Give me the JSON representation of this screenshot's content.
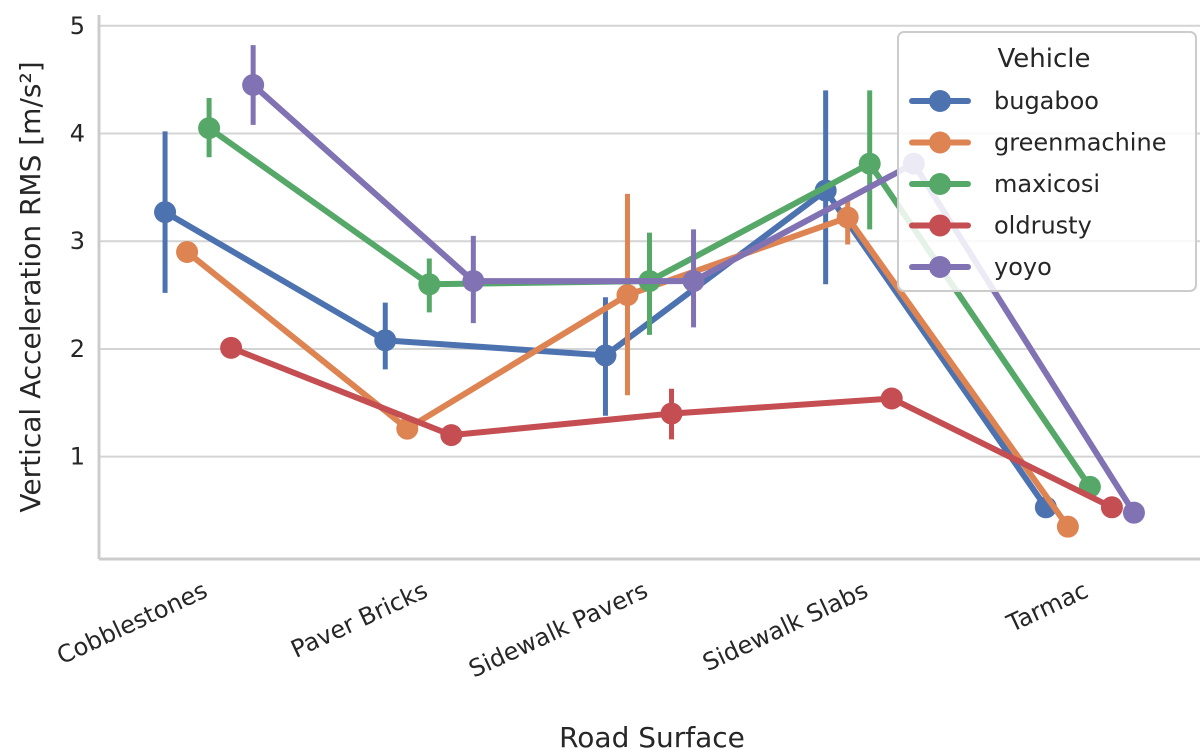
{
  "chart_data": {
    "type": "line",
    "title": "",
    "xlabel": "Road Surface",
    "ylabel": "Vertical Acceleration RMS [m/s²]",
    "ylim": [
      0.05,
      5.1
    ],
    "yticks": [
      1,
      2,
      3,
      4,
      5
    ],
    "grid": true,
    "categories": [
      "Cobblestones",
      "Paver Bricks",
      "Sidewalk Pavers",
      "Sidewalk Slabs",
      "Tarmac"
    ],
    "legend": {
      "title": "Vehicle",
      "placement": "top-right"
    },
    "series": [
      {
        "name": "bugaboo",
        "color": "#4c72b0",
        "values": [
          3.27,
          2.08,
          1.94,
          3.47,
          0.53
        ],
        "ci": [
          [
            2.52,
            4.02
          ],
          [
            1.81,
            2.43
          ],
          [
            1.38,
            2.48
          ],
          [
            2.6,
            4.4
          ],
          [
            0.5,
            0.56
          ]
        ]
      },
      {
        "name": "greenmachine",
        "color": "#dd8452",
        "values": [
          2.9,
          1.26,
          2.5,
          3.22,
          0.35
        ],
        "ci": [
          [
            2.84,
            2.96
          ],
          [
            1.22,
            1.3
          ],
          [
            1.57,
            3.44
          ],
          [
            2.97,
            3.4
          ],
          [
            0.33,
            0.37
          ]
        ]
      },
      {
        "name": "maxicosi",
        "color": "#55a868",
        "values": [
          4.05,
          2.6,
          2.63,
          3.72,
          0.72
        ],
        "ci": [
          [
            3.78,
            4.33
          ],
          [
            2.34,
            2.84
          ],
          [
            2.13,
            3.08
          ],
          [
            3.11,
            4.4
          ],
          [
            0.69,
            0.75
          ]
        ]
      },
      {
        "name": "oldrusty",
        "color": "#c44e52",
        "values": [
          2.01,
          1.2,
          1.4,
          1.54,
          0.53
        ],
        "ci": [
          [
            1.98,
            2.04
          ],
          [
            1.17,
            1.23
          ],
          [
            1.16,
            1.63
          ],
          [
            1.51,
            1.57
          ],
          [
            0.5,
            0.56
          ]
        ]
      },
      {
        "name": "yoyo",
        "color": "#8172b3",
        "values": [
          4.45,
          2.63,
          2.63,
          3.72,
          0.48
        ],
        "ci": [
          [
            4.08,
            4.82
          ],
          [
            2.24,
            3.05
          ],
          [
            2.2,
            3.11
          ],
          [
            3.68,
            3.76
          ],
          [
            0.45,
            0.51
          ]
        ]
      }
    ]
  }
}
